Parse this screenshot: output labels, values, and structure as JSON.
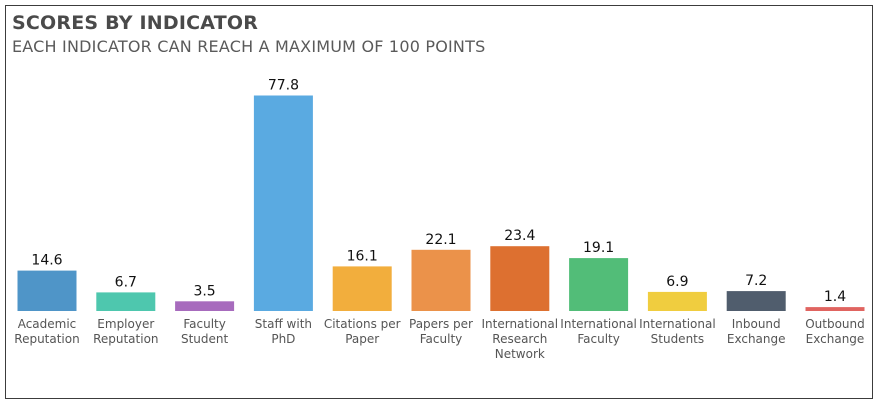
{
  "title": "SCORES BY INDICATOR",
  "subtitle": "EACH INDICATOR CAN REACH A MAXIMUM OF 100 POINTS",
  "chart_data": {
    "type": "bar",
    "title": "SCORES BY INDICATOR",
    "subtitle": "EACH INDICATOR CAN REACH A MAXIMUM OF 100 POINTS",
    "xlabel": "",
    "ylabel": "",
    "ylim": [
      0,
      100
    ],
    "grid": false,
    "legend": "none",
    "categories": [
      [
        "Academic",
        "Reputation"
      ],
      [
        "Employer",
        "Reputation"
      ],
      [
        "Faculty",
        "Student"
      ],
      [
        "Staff with",
        "PhD"
      ],
      [
        "Citations per",
        "Paper"
      ],
      [
        "Papers per",
        "Faculty"
      ],
      [
        "International",
        "Research",
        "Network"
      ],
      [
        "International",
        "Faculty"
      ],
      [
        "International",
        "Students"
      ],
      [
        "Inbound",
        "Exchange"
      ],
      [
        "Outbound",
        "Exchange"
      ]
    ],
    "values": [
      14.6,
      6.7,
      3.5,
      77.8,
      16.1,
      22.1,
      23.4,
      19.1,
      6.9,
      7.2,
      1.4
    ],
    "value_labels": [
      "14.6",
      "6.7",
      "3.5",
      "77.8",
      "16.1",
      "22.1",
      "23.4",
      "19.1",
      "6.9",
      "7.2",
      "1.4"
    ],
    "colors": [
      "#4f95c8",
      "#4ec7ae",
      "#a76bbd",
      "#5aaae1",
      "#f2ae3d",
      "#eb924a",
      "#dd7030",
      "#52bd78",
      "#f0cd3f",
      "#505d6d",
      "#e06460"
    ]
  }
}
